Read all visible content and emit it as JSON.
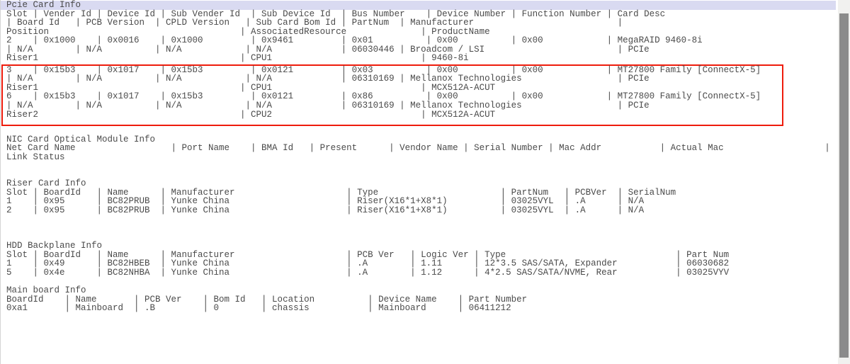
{
  "terminal": {
    "highlight_color": "#d9daf1",
    "text_color": "#4a4a4a",
    "red_box_color": "#ee1c0c",
    "sections": [
      {
        "name": "pcie",
        "title": "Pcie Card Info",
        "title_highlighted": true,
        "gap_before": 0,
        "header_lines": [
          "Slot | Vender Id | Device Id | Sub Vender Id  | Sub Device Id  | Bus Number    | Device Number | Function Number | Card Desc",
          "| Board Id   | PCB Version  | CPLD Version   | Sub Card Bom Id | PartNum  | Manufacturer                           |",
          "Position                                    | AssociatedResource              | ProductName"
        ],
        "cards": [
          {
            "boxed": false,
            "lines": [
              "2    | 0x1000    | 0x0016    | 0x1000         | 0x9461         | 0x01          | 0x00          | 0x00            | MegaRAID 9460-8i",
              "| N/A        | N/A          | N/A            | N/A             | 06030446 | Broadcom / LSI                         | PCIe",
              "Riser1                                      | CPU1                            | 9460-8i"
            ]
          },
          {
            "boxed": true,
            "lines": [
              "3    | 0x15b3    | 0x1017    | 0x15b3         | 0x0121         | 0x03          | 0x00          | 0x00            | MT27800 Family [ConnectX-5]",
              "| N/A        | N/A          | N/A            | N/A             | 06310169 | Mellanox Technologies                  | PCIe",
              "Riser1                                      | CPU1                            | MCX512A-ACUT"
            ]
          },
          {
            "boxed": true,
            "lines": [
              "6    | 0x15b3    | 0x1017    | 0x15b3         | 0x0121         | 0x86          | 0x00          | 0x00            | MT27800 Family [ConnectX-5]",
              "| N/A        | N/A          | N/A            | N/A             | 06310169 | Mellanox Technologies                  | PCIe",
              "Riser2                                      | CPU2                            | MCX512A-ACUT"
            ]
          }
        ],
        "rows": []
      },
      {
        "name": "nic",
        "title": "NIC Card Optical Module Info",
        "title_highlighted": false,
        "gap_before": 1,
        "header_lines": [
          "Net Card Name                  | Port Name    | BMA Id   | Present      | Vendor Name | Serial Number | Mac Addr           | Actual Mac                   |",
          "Link Status"
        ],
        "cards": [],
        "rows": []
      },
      {
        "name": "riser",
        "title": "Riser Card Info",
        "title_highlighted": false,
        "gap_before": 2,
        "header_lines": [
          "Slot | BoardId   | Name      | Manufacturer                     | Type                       | PartNum   | PCBVer  | SerialNum"
        ],
        "cards": [],
        "rows": [
          "1    | 0x95      | BC82PRUB  | Yunke China                      | Riser(X16*1+X8*1)          | 03025VYL  | .A      | N/A",
          "2    | 0x95      | BC82PRUB  | Yunke China                      | Riser(X16*1+X8*1)          | 03025VYL  | .A      | N/A"
        ]
      },
      {
        "name": "hdd",
        "title": "HDD Backplane Info",
        "title_highlighted": false,
        "gap_before": 3,
        "header_lines": [
          "Slot | BoardId   | Name      | Manufacturer                     | PCB Ver   | Logic Ver | Type                                | Part Num"
        ],
        "cards": [],
        "rows": [
          "1    | 0x49      | BC82HBEB  | Yunke China                      | .A        | 1.11      | 12*3.5 SAS/SATA, Expander           | 06030682",
          "5    | 0x4e      | BC82NHBA  | Yunke China                      | .A        | 1.12      | 4*2.5 SAS/SATA/NVME, Rear           | 03025VYV"
        ]
      },
      {
        "name": "mainboard",
        "title": "Main board Info",
        "title_highlighted": false,
        "gap_before": 1,
        "header_lines": [
          "BoardId    | Name       | PCB Ver    | Bom Id   | Location          | Device Name    | Part Number"
        ],
        "cards": [],
        "rows": [
          "0xa1       | Mainboard  | .B         | 0        | chassis           | Mainboard      | 06411212"
        ]
      }
    ]
  },
  "scrollbar": {
    "track_color": "#f1f1ef",
    "thumb_color": "#8b8b8b"
  }
}
